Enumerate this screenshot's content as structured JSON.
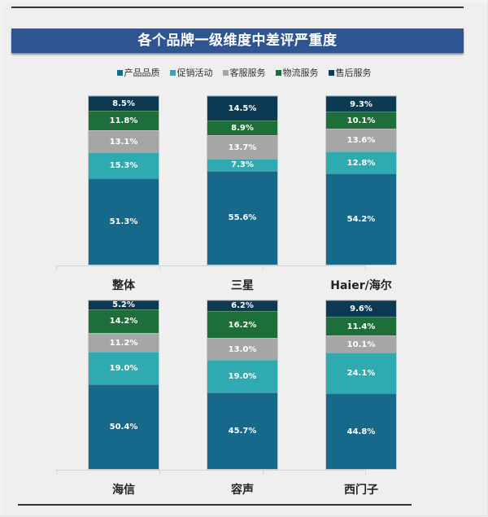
{
  "title": "各个品牌一级维度中差评严重度",
  "colors": {
    "banner": "#2e5592",
    "产品品质": "#17698c",
    "促销活动": "#2eaab0",
    "客服服务": "#a6a6a6",
    "物流服务": "#1d6e38",
    "售后服务": "#0c3a52"
  },
  "legend": [
    {
      "label": "产品品质",
      "color": "#17698c"
    },
    {
      "label": "促销活动",
      "color": "#2eaab0"
    },
    {
      "label": "客服服务",
      "color": "#a6a6a6"
    },
    {
      "label": "物流服务",
      "color": "#1d6e38"
    },
    {
      "label": "售后服务",
      "color": "#0c3a52"
    }
  ],
  "chart_data": {
    "type": "bar",
    "stacked": true,
    "percent_stacked": true,
    "title": "各个品牌一级维度中差评严重度",
    "xlabel": "",
    "ylabel": "",
    "ylim": [
      0,
      100
    ],
    "grid": false,
    "legend_position": "top",
    "categories": [
      "整体",
      "三星",
      "Haier/海尔",
      "海信",
      "容声",
      "西门子"
    ],
    "series": [
      {
        "name": "产品品质",
        "values": [
          51.3,
          55.6,
          54.2,
          50.4,
          45.7,
          44.8
        ]
      },
      {
        "name": "促销活动",
        "values": [
          15.3,
          7.3,
          12.8,
          19.0,
          19.0,
          24.1
        ]
      },
      {
        "name": "客服服务",
        "values": [
          13.1,
          13.7,
          13.6,
          11.2,
          13.0,
          10.1
        ]
      },
      {
        "name": "物流服务",
        "values": [
          11.8,
          8.9,
          10.1,
          14.2,
          16.2,
          11.4
        ]
      },
      {
        "name": "售后服务",
        "values": [
          8.5,
          14.5,
          9.3,
          5.2,
          6.2,
          9.6
        ]
      }
    ],
    "panels": [
      {
        "categories": [
          "整体",
          "三星",
          "Haier/海尔"
        ]
      },
      {
        "categories": [
          "海信",
          "容声",
          "西门子"
        ]
      }
    ]
  },
  "labels": {
    "c0": [
      "51.3%",
      "15.3%",
      "13.1%",
      "11.8%",
      "8.5%"
    ],
    "c1": [
      "55.6%",
      "7.3%",
      "13.7%",
      "8.9%",
      "14.5%"
    ],
    "c2": [
      "54.2%",
      "12.8%",
      "13.6%",
      "10.1%",
      "9.3%"
    ],
    "c3": [
      "50.4%",
      "19.0%",
      "11.2%",
      "14.2%",
      "5.2%"
    ],
    "c4": [
      "45.7%",
      "19.0%",
      "13.0%",
      "16.2%",
      "6.2%"
    ],
    "c5": [
      "44.8%",
      "24.1%",
      "10.1%",
      "11.4%",
      "9.6%"
    ]
  }
}
